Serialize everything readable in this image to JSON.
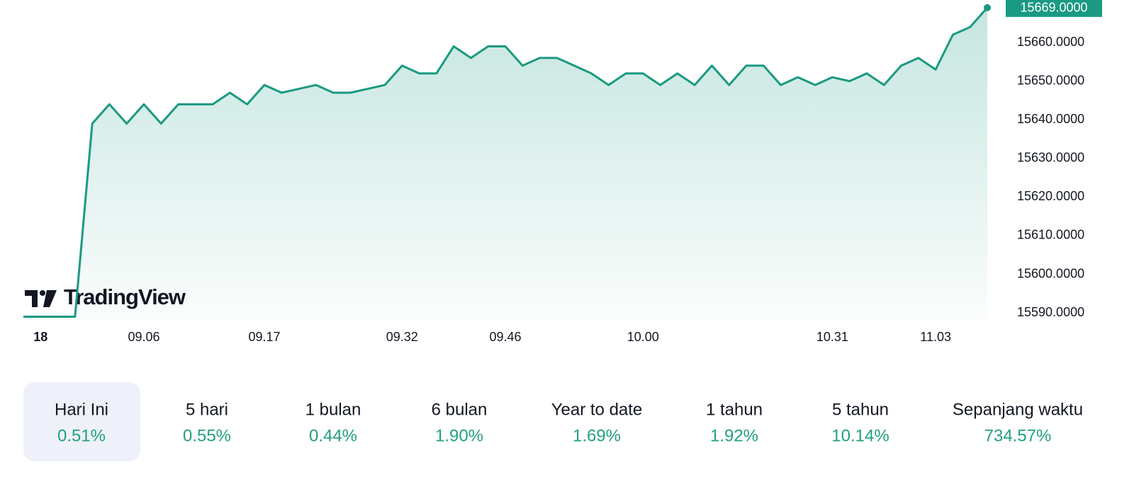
{
  "chart_data": {
    "type": "line",
    "categories": [
      null,
      "18",
      null,
      null,
      null,
      null,
      null,
      "09.06",
      null,
      null,
      null,
      null,
      null,
      null,
      "09.17",
      null,
      null,
      null,
      null,
      null,
      null,
      null,
      "09.32",
      null,
      null,
      null,
      null,
      null,
      "09.46",
      null,
      null,
      null,
      null,
      null,
      null,
      null,
      "10.00",
      null,
      null,
      null,
      null,
      null,
      null,
      null,
      null,
      null,
      null,
      "10.31",
      null,
      null,
      null,
      null,
      null,
      "11.03",
      null,
      null,
      null
    ],
    "series": [
      {
        "color": "#1a9a82",
        "values": [
          15589,
          15589,
          15589,
          15589,
          15639,
          15644,
          15639,
          15644,
          15639,
          15644,
          15644,
          15644,
          15647,
          15644,
          15649,
          15647,
          15648,
          15649,
          15647,
          15647,
          15648,
          15649,
          15654,
          15652,
          15652,
          15659,
          15656,
          15659,
          15659,
          15654,
          15656,
          15656,
          15654,
          15652,
          15649,
          15652,
          15652,
          15649,
          15652,
          15649,
          15654,
          15649,
          15654,
          15654,
          15649,
          15651,
          15649,
          15651,
          15650,
          15652,
          15649,
          15654,
          15656,
          15653,
          15662,
          15664,
          15669
        ],
        "value_labels": [
          null,
          null,
          null,
          null,
          null,
          null,
          null,
          null,
          null,
          null,
          null,
          null,
          null,
          null,
          null,
          null,
          null,
          null,
          null,
          null,
          null,
          null,
          null,
          null,
          null,
          null,
          null,
          null,
          null,
          null,
          null,
          null,
          null,
          null,
          null,
          null,
          null,
          null,
          null,
          null,
          null,
          null,
          null,
          null,
          null,
          null,
          null,
          null,
          null,
          null,
          null,
          null,
          null,
          null,
          null,
          null,
          "15669.0000"
        ]
      }
    ],
    "ylim": [
      15588,
      15671
    ],
    "yticks": [
      {
        "value": 15590,
        "label": "15590.0000"
      },
      {
        "value": 15600,
        "label": "15600.0000"
      },
      {
        "value": 15610,
        "label": "15610.0000"
      },
      {
        "value": 15620,
        "label": "15620.0000"
      },
      {
        "value": 15630,
        "label": "15630.0000"
      },
      {
        "value": 15640,
        "label": "15640.0000"
      },
      {
        "value": 15650,
        "label": "15650.0000"
      },
      {
        "value": 15660,
        "label": "15660.0000"
      }
    ],
    "grid": false
  },
  "brand": "TradingView",
  "periods": [
    {
      "label": "Hari Ini",
      "change": "0.51%"
    },
    {
      "label": "5 hari",
      "change": "0.55%"
    },
    {
      "label": "1 bulan",
      "change": "0.44%"
    },
    {
      "label": "6 bulan",
      "change": "1.90%"
    },
    {
      "label": "Year to date",
      "change": "1.69%"
    },
    {
      "label": "1 tahun",
      "change": "1.92%"
    },
    {
      "label": "5 tahun",
      "change": "10.14%"
    },
    {
      "label": "Sepanjang waktu",
      "change": "734.57%"
    }
  ],
  "active_period": 0
}
